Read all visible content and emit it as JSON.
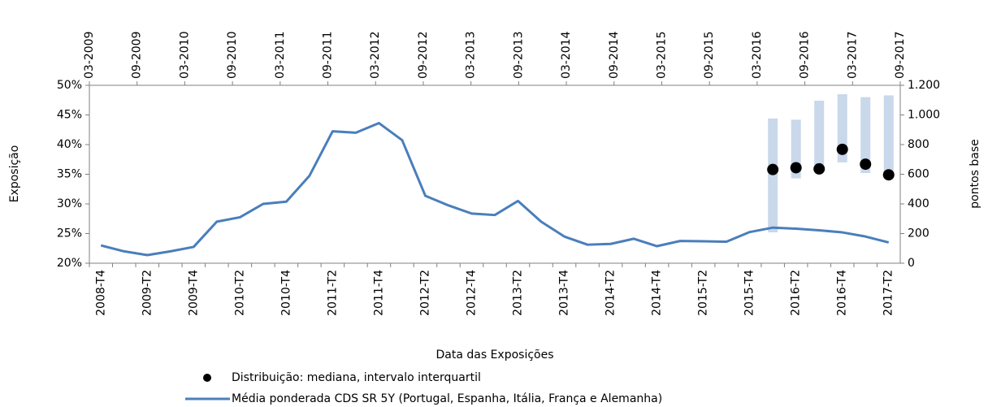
{
  "chart_data": {
    "type": "line",
    "xlabel": "Data das Exposições",
    "ylabel": "Exposição",
    "y2label": "pontos base",
    "categories": [
      "2008-T4",
      null,
      "2009-T2",
      null,
      "2009-T4",
      null,
      "2010-T2",
      null,
      "2010-T4",
      null,
      "2011-T2",
      null,
      "2011-T4",
      null,
      "2012-T2",
      null,
      "2012-T4",
      null,
      "2013-T2",
      null,
      "2013-T4",
      null,
      "2014-T2",
      null,
      "2014-T4",
      null,
      "2015-T2",
      null,
      "2015-T4",
      null,
      "2016-T2",
      null,
      "2016-T4",
      null,
      "2017-T2"
    ],
    "x2categories": [
      "03-2009",
      "09-2009",
      "03-2010",
      "09-2010",
      "03-2011",
      "09-2011",
      "03-2012",
      "09-2012",
      "03-2013",
      "09-2013",
      "03-2014",
      "09-2014",
      "03-2015",
      "09-2015",
      "03-2016",
      "09-2016",
      "03-2017",
      "09-2017"
    ],
    "ylim": [
      20,
      50
    ],
    "yticks": [
      {
        "value": 20,
        "label": "20%"
      },
      {
        "value": 25,
        "label": "25%"
      },
      {
        "value": 30,
        "label": "30%"
      },
      {
        "value": 35,
        "label": "35%"
      },
      {
        "value": 40,
        "label": "40%"
      },
      {
        "value": 45,
        "label": "45%"
      },
      {
        "value": 50,
        "label": "50%"
      }
    ],
    "y2lim": [
      0,
      1200
    ],
    "y2ticks": [
      0,
      200,
      400,
      600,
      800,
      {
        "value": 1000,
        "label": "1.000"
      },
      {
        "value": 1200,
        "label": "1.200"
      }
    ],
    "grid": false,
    "series": [
      {
        "name": "Distribuição: mediana, intervalo interquartil",
        "type": "scatter",
        "color": "#000000",
        "range_color": "#c9d8ea",
        "values": [
          null,
          null,
          null,
          null,
          null,
          null,
          null,
          null,
          null,
          null,
          null,
          null,
          null,
          null,
          null,
          null,
          null,
          null,
          null,
          null,
          null,
          null,
          null,
          null,
          null,
          null,
          null,
          null,
          null,
          35.8,
          36.1,
          35.9,
          39.2,
          36.7,
          34.9
        ],
        "q1": [
          null,
          null,
          null,
          null,
          null,
          null,
          null,
          null,
          null,
          null,
          null,
          null,
          null,
          null,
          null,
          null,
          null,
          null,
          null,
          null,
          null,
          null,
          null,
          null,
          null,
          null,
          null,
          null,
          null,
          25.2,
          34.3,
          35.4,
          37.0,
          35.2,
          35.0
        ],
        "q3": [
          null,
          null,
          null,
          null,
          null,
          null,
          null,
          null,
          null,
          null,
          null,
          null,
          null,
          null,
          null,
          null,
          null,
          null,
          null,
          null,
          null,
          null,
          null,
          null,
          null,
          null,
          null,
          null,
          null,
          44.4,
          44.2,
          47.4,
          48.5,
          48.0,
          48.3
        ]
      },
      {
        "name": "Média ponderada CDS SR 5Y (Portugal, Espanha, Itália, França e Alemanha)",
        "type": "line",
        "axis": "y2",
        "color": "#4a7ebb",
        "values": [
          120,
          80,
          55,
          80,
          110,
          280,
          310,
          400,
          415,
          590,
          890,
          880,
          945,
          830,
          455,
          390,
          335,
          325,
          420,
          280,
          180,
          125,
          130,
          165,
          115,
          150,
          148,
          145,
          210,
          240,
          233,
          222,
          208,
          180,
          140
        ]
      }
    ]
  }
}
